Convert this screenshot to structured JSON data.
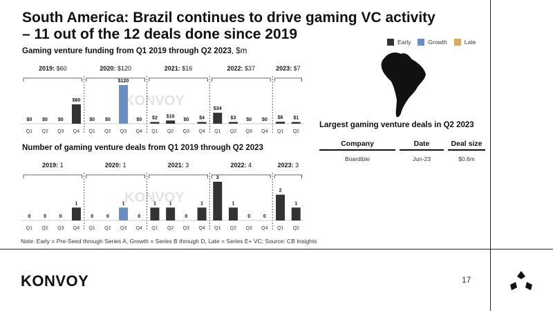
{
  "title_line1": "South America: Brazil continues to drive gaming VC activity",
  "title_line2": "– 11 out of the 12 deals done since 2019",
  "legend": [
    {
      "label": "Early",
      "color": "#333333"
    },
    {
      "label": "Growth",
      "color": "#6a8ec4"
    },
    {
      "label": "Late",
      "color": "#e2a85a"
    }
  ],
  "watermark": "KONVOY",
  "chart_data": [
    {
      "type": "bar",
      "title": "Gaming venture funding from Q1 2019 through Q2 2023",
      "unit": ", $m",
      "categories": [
        "Q1",
        "Q2",
        "Q3",
        "Q4",
        "Q1",
        "Q2",
        "Q3",
        "Q4",
        "Q1",
        "Q2",
        "Q3",
        "Q4",
        "Q1",
        "Q2",
        "Q3",
        "Q4",
        "Q1",
        "Q2"
      ],
      "values": [
        0,
        0,
        0,
        60,
        0,
        0,
        120,
        0,
        2,
        10,
        0,
        4,
        34,
        3,
        0,
        0,
        6,
        1
      ],
      "value_labels": [
        "$0",
        "$0",
        "$0",
        "$60",
        "$0",
        "$0",
        "$120",
        "$0",
        "$2",
        "$10",
        "$0",
        "$4",
        "$34",
        "$3",
        "$0",
        "$0",
        "$6",
        "$1"
      ],
      "stage": [
        "early",
        "early",
        "early",
        "early",
        "early",
        "early",
        "growth",
        "early",
        "early",
        "early",
        "early",
        "early",
        "early",
        "early",
        "early",
        "early",
        "early",
        "early"
      ],
      "groups": [
        {
          "year": "2019:",
          "total": "$60",
          "start": 0,
          "end": 3
        },
        {
          "year": "2020:",
          "total": "$120",
          "start": 4,
          "end": 7
        },
        {
          "year": "2021:",
          "total": "$16",
          "start": 8,
          "end": 11
        },
        {
          "year": "2022:",
          "total": "$37",
          "start": 12,
          "end": 15
        },
        {
          "year": "2023:",
          "total": "$7",
          "start": 16,
          "end": 17
        }
      ],
      "ylim": [
        0,
        120
      ]
    },
    {
      "type": "bar",
      "title": "Number of gaming venture deals from Q1 2019 through Q2 2023",
      "unit": "",
      "categories": [
        "Q1",
        "Q2",
        "Q3",
        "Q4",
        "Q1",
        "Q2",
        "Q3",
        "Q4",
        "Q1",
        "Q2",
        "Q3",
        "Q4",
        "Q1",
        "Q2",
        "Q3",
        "Q4",
        "Q1",
        "Q2"
      ],
      "values": [
        0,
        0,
        0,
        1,
        0,
        0,
        1,
        0,
        1,
        1,
        0,
        1,
        3,
        1,
        0,
        0,
        2,
        1
      ],
      "value_labels": [
        "0",
        "0",
        "0",
        "1",
        "0",
        "0",
        "1",
        "0",
        "1",
        "1",
        "0",
        "1",
        "3",
        "1",
        "0",
        "0",
        "2",
        "1"
      ],
      "stage": [
        "early",
        "early",
        "early",
        "early",
        "early",
        "early",
        "growth",
        "early",
        "early",
        "early",
        "early",
        "early",
        "early",
        "early",
        "early",
        "early",
        "early",
        "early"
      ],
      "groups": [
        {
          "year": "2019:",
          "total": "1",
          "start": 0,
          "end": 3
        },
        {
          "year": "2020:",
          "total": "1",
          "start": 4,
          "end": 7
        },
        {
          "year": "2021:",
          "total": "3",
          "start": 8,
          "end": 11
        },
        {
          "year": "2022:",
          "total": "4",
          "start": 12,
          "end": 15
        },
        {
          "year": "2023:",
          "total": "3",
          "start": 16,
          "end": 17
        }
      ],
      "ylim": [
        0,
        3
      ]
    }
  ],
  "deals": {
    "title": "Largest gaming venture deals in Q2 2023",
    "headers": [
      "Company",
      "Date",
      "Deal size"
    ],
    "rows": [
      [
        "Boardible",
        "Jun-23",
        "$0.6m"
      ]
    ]
  },
  "note": "Note: Early = Pre-Seed through Series A, Growth = Series B through D, Late = Series E+ VC; Source: CB Insights",
  "footer": {
    "logo": "KONVOY",
    "page": "17"
  }
}
